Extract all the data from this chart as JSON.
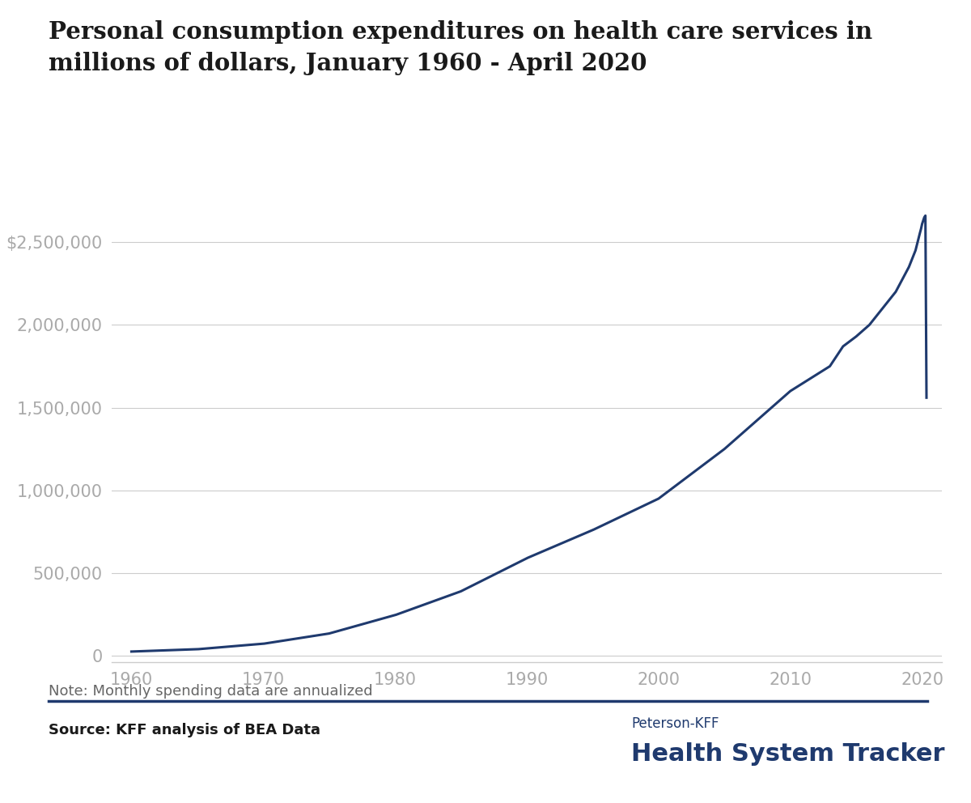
{
  "title_line1": "Personal consumption expenditures on health care services in",
  "title_line2": "millions of dollars, January 1960 - April 2020",
  "note": "Note: Monthly spending data are annualized",
  "source": "Source: KFF analysis of BEA Data",
  "brand_line1": "Peterson-KFF",
  "brand_line2": "Health System Tracker",
  "line_color": "#1f3a6e",
  "background_color": "#ffffff",
  "title_color": "#1a1a1a",
  "axis_label_color": "#aaaaaa",
  "grid_color": "#cccccc",
  "note_color": "#666666",
  "source_color": "#1a1a1a",
  "brand_color": "#1f3a6e",
  "ytick_labels": [
    "0",
    "500,000",
    "1,000,000",
    "1,500,000",
    "2,000,000",
    "$2,500,000"
  ],
  "ytick_values": [
    0,
    500000,
    1000000,
    1500000,
    2000000,
    2500000
  ],
  "xtick_labels": [
    "1960",
    "1970",
    "1980",
    "1990",
    "2000",
    "2010",
    "2020"
  ],
  "xtick_values": [
    1960,
    1970,
    1980,
    1990,
    2000,
    2010,
    2020
  ],
  "ylim": [
    -40000,
    2750000
  ],
  "xlim": [
    1958.5,
    2021.5
  ],
  "anchors_x": [
    1960.0,
    1965.0,
    1970.0,
    1975.0,
    1980.0,
    1985.0,
    1990.0,
    1995.0,
    2000.0,
    2005.0,
    2010.0,
    2013.0,
    2014.0,
    2015.0,
    2016.0,
    2017.0,
    2018.0,
    2019.0,
    2019.5,
    2019.75,
    2019.917,
    2020.0,
    2020.083,
    2020.167,
    2020.25,
    2020.333
  ],
  "anchors_y": [
    26000,
    40000,
    73000,
    135000,
    246000,
    390000,
    590000,
    760000,
    950000,
    1250000,
    1600000,
    1750000,
    1870000,
    1930000,
    2000000,
    2100000,
    2200000,
    2350000,
    2450000,
    2530000,
    2580000,
    2610000,
    2630000,
    2650000,
    2660000,
    1560000
  ]
}
